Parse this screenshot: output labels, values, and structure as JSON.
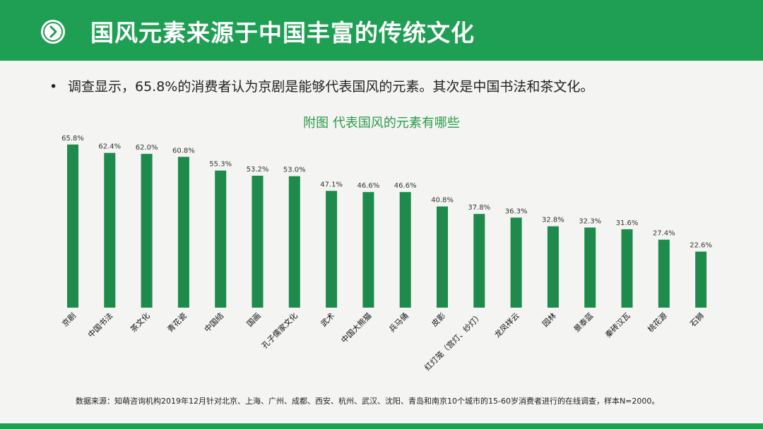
{
  "header": {
    "title": "国风元素来源于中国丰富的传统文化",
    "icon": "chevron-right-icon",
    "color": "#1f9f53"
  },
  "bullet": {
    "marker": "•",
    "text": "调查显示，65.8%的消费者认为京剧是能够代表国风的元素。其次是中国书法和茶文化。"
  },
  "chart_data": {
    "type": "bar",
    "title": "附图  代表国风的元素有哪些",
    "categories": [
      "京剧",
      "中国书法",
      "茶文化",
      "青花瓷",
      "中国结",
      "国画",
      "孔子儒家文化",
      "武术",
      "中国大熊猫",
      "兵马俑",
      "皮影",
      "红灯笼（宫灯、纱灯）",
      "龙凤祥云",
      "园林",
      "景泰蓝",
      "秦砖汉瓦",
      "桃花源",
      "石狮"
    ],
    "values": [
      65.8,
      62.4,
      62.0,
      60.8,
      55.3,
      53.2,
      53.0,
      47.1,
      46.6,
      46.6,
      40.8,
      37.8,
      36.3,
      32.8,
      32.3,
      31.6,
      27.4,
      22.6
    ],
    "value_labels": [
      "65.8%",
      "62.4%",
      "62.0%",
      "60.8%",
      "55.3%",
      "53.2%",
      "53.0%",
      "47.1%",
      "46.6%",
      "46.6%",
      "40.8%",
      "37.8%",
      "36.3%",
      "32.8%",
      "32.3%",
      "31.6%",
      "27.4%",
      "22.6%"
    ],
    "unit": "%",
    "ylim": [
      0,
      70
    ],
    "bar_color": "#1e8a4c",
    "grid": false,
    "legend": "none"
  },
  "footer": {
    "source": "数据来源：知萌咨询机构2019年12月针对北京、上海、广州、成都、西安、杭州、武汉、沈阳、青岛和南京10个城市的15-60岁消费者进行的在线调查，样本N=2000。"
  }
}
